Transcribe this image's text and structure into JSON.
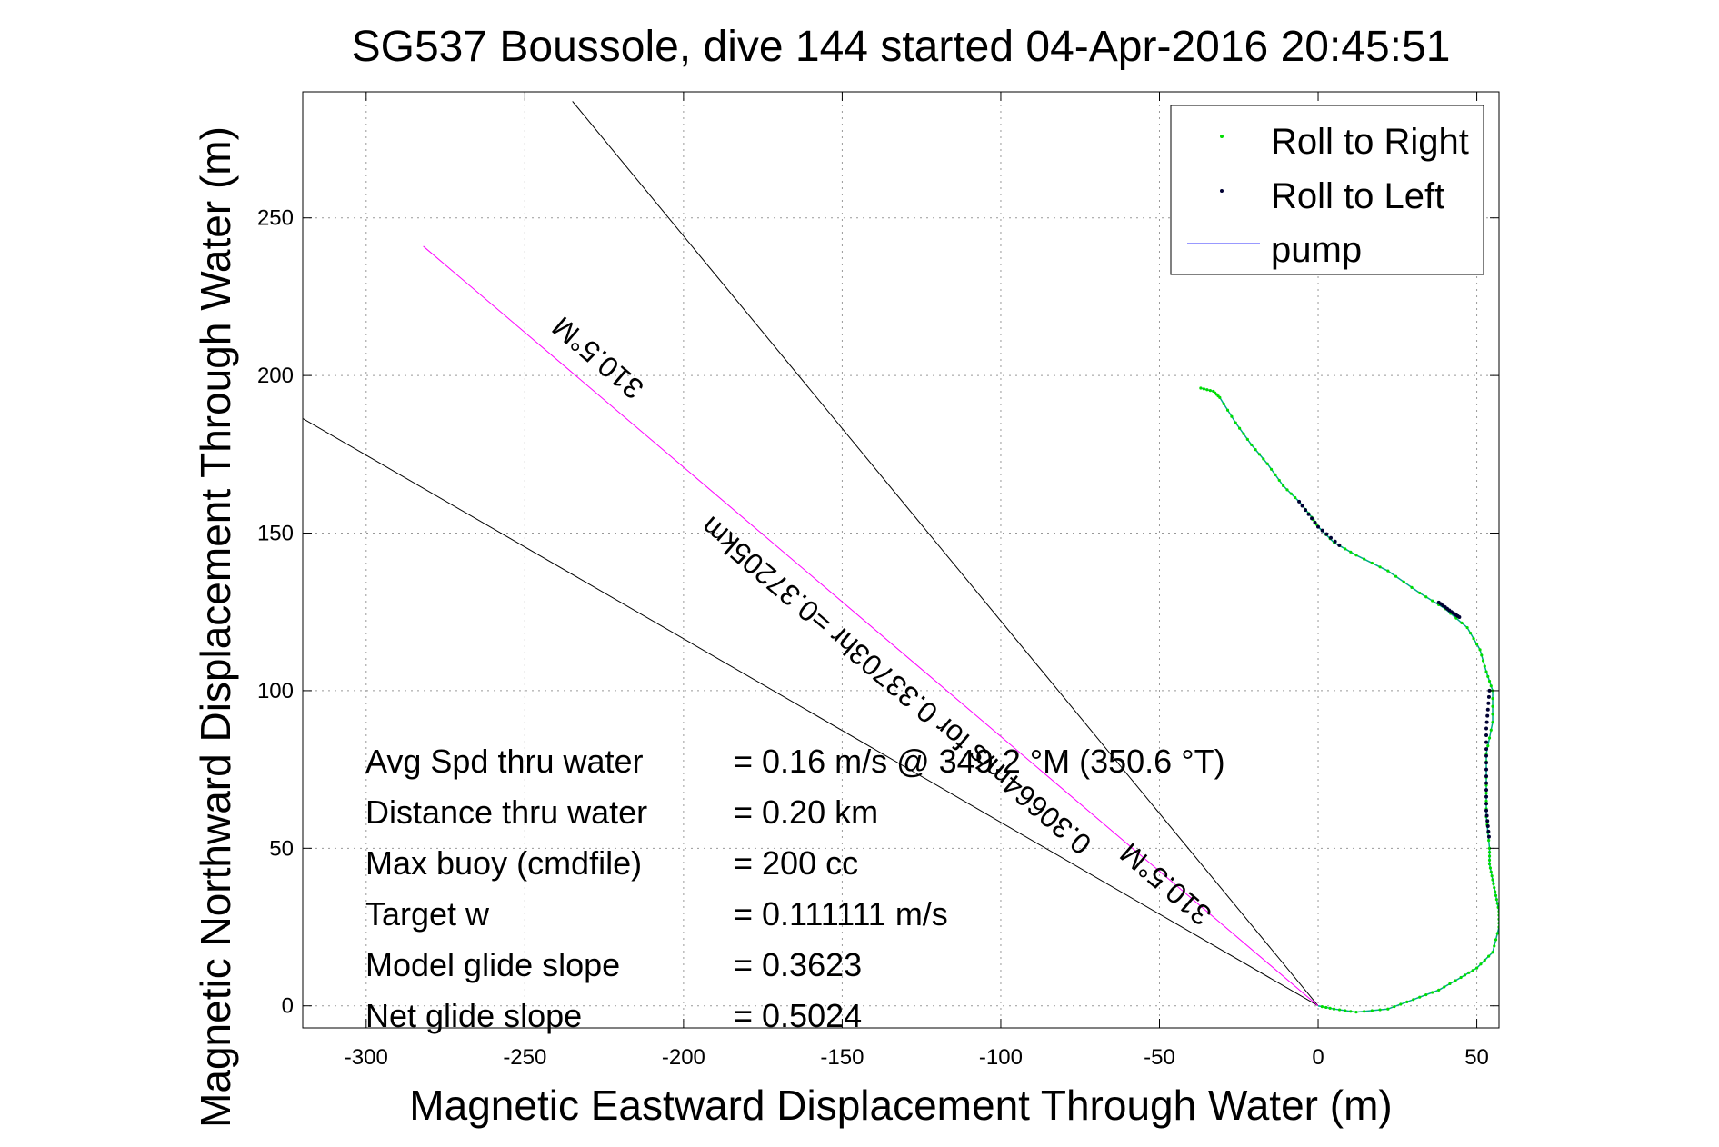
{
  "chart_data": {
    "type": "line",
    "title": "SG537 Boussole, dive 144 started 04-Apr-2016 20:45:51",
    "xlabel": "Magnetic Eastward Displacement Through Water (m)",
    "ylabel": "Magnetic Northward Displacement Through Water (m)",
    "xlim": [
      -320,
      57
    ],
    "ylim": [
      -7,
      290
    ],
    "xticks": [
      -300,
      -250,
      -200,
      -150,
      -100,
      -50,
      0,
      50
    ],
    "yticks": [
      0,
      50,
      100,
      150,
      200,
      250
    ],
    "grid": true,
    "legend_position": "top-right",
    "legend": [
      {
        "label": "Roll to Right",
        "color": "#00dd00",
        "marker": "dot"
      },
      {
        "label": "Roll to Left",
        "color": "#000033",
        "marker": "dot"
      },
      {
        "label": "pump",
        "color": "#3333ff",
        "marker": "line"
      }
    ],
    "track": {
      "color": "#00aa88",
      "x": [
        -37,
        -33,
        -31,
        -26,
        -21,
        -16,
        -11,
        -6,
        -2,
        0,
        5,
        12,
        22,
        32,
        40,
        47,
        51,
        53,
        55,
        55,
        53,
        53,
        53,
        54,
        54,
        55,
        56,
        57,
        57,
        55,
        50,
        45,
        38,
        30,
        22,
        12,
        5,
        0
      ],
      "y": [
        196,
        195,
        193,
        185,
        178,
        172,
        165,
        160,
        155,
        152,
        147,
        143,
        138,
        131,
        126,
        120,
        113,
        106,
        100,
        90,
        80,
        70,
        60,
        50,
        45,
        40,
        35,
        30,
        25,
        17,
        12,
        9,
        5,
        2,
        -1,
        -2,
        -1,
        0
      ]
    },
    "roll_left_segments": [
      {
        "x": [
          -6,
          0,
          8
        ],
        "y": [
          160,
          152,
          145
        ]
      },
      {
        "x": [
          38,
          42,
          45
        ],
        "y": [
          128,
          125,
          123
        ]
      },
      {
        "x": [
          54,
          53,
          53,
          53,
          54
        ],
        "y": [
          100,
          88,
          75,
          62,
          52
        ]
      }
    ],
    "heading_lines": [
      {
        "x": [
          0,
          -340
        ],
        "y": [
          0,
          198
        ],
        "color": "#000000"
      },
      {
        "x": [
          0,
          -235
        ],
        "y": [
          0,
          287
        ],
        "color": "#000000"
      },
      {
        "x": [
          0,
          -282
        ],
        "y": [
          0,
          241
        ],
        "color": "#ff00ff"
      }
    ],
    "line_labels": [
      {
        "text": "310.5°M",
        "x": -225,
        "y": 208,
        "rotation": 40.5
      },
      {
        "text": "0.30664m/s for 0.33703hr =0.37205km",
        "x": -131,
        "y": 104,
        "rotation": 40.5
      },
      {
        "text": "310.5°M",
        "x": -46,
        "y": 41,
        "rotation": 40.5
      }
    ]
  },
  "stats": [
    {
      "label": "Avg Spd thru water",
      "value": "=  0.16 m/s @ 349.2 °M (350.6 °T)"
    },
    {
      "label": "Distance thru water",
      "value": "=  0.20 km"
    },
    {
      "label": "Max buoy (cmdfile)",
      "value": "= 200 cc"
    },
    {
      "label": "Target w",
      "value": "= 0.111111 m/s"
    },
    {
      "label": "Model glide slope",
      "value": "= 0.3623"
    },
    {
      "label": "Net glide slope",
      "value": "= 0.5024"
    }
  ]
}
